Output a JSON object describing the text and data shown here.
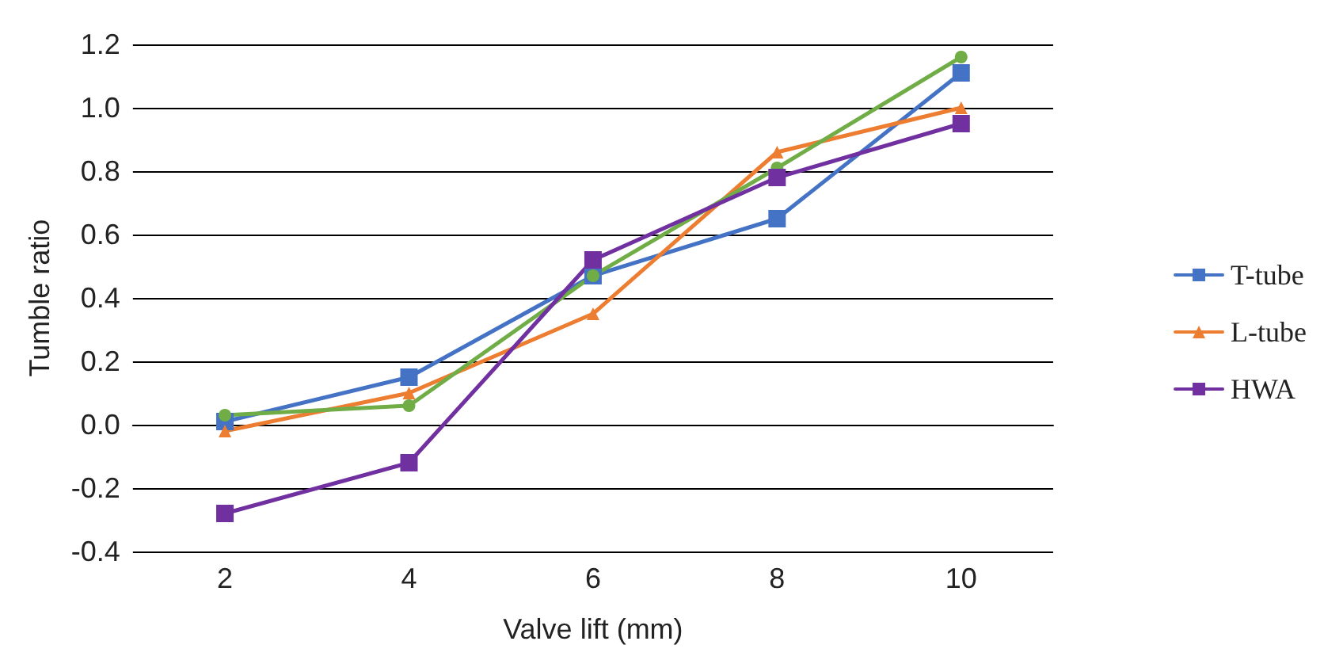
{
  "chart_data": {
    "type": "line",
    "xlabel": "Valve lift (mm)",
    "ylabel": "Tumble ratio",
    "categories": [
      "2",
      "4",
      "6",
      "8",
      "10"
    ],
    "series": [
      {
        "name": "T-tube",
        "color": "#4472c4",
        "marker": "square",
        "values": [
          0.01,
          0.15,
          0.47,
          0.65,
          1.11
        ]
      },
      {
        "name": "L-tube",
        "color": "#ed7d31",
        "marker": "triangle",
        "values": [
          -0.02,
          0.1,
          0.35,
          0.86,
          1.0
        ]
      },
      {
        "color": "#70ad47",
        "marker": "circle",
        "values": [
          0.03,
          0.06,
          0.47,
          0.81,
          1.16
        ]
      },
      {
        "name": "HWA",
        "color": "#7030a0",
        "marker": "square",
        "values": [
          -0.28,
          -0.12,
          0.52,
          0.78,
          0.95
        ]
      }
    ],
    "ylim": [
      -0.4,
      1.2
    ],
    "yticks": [
      -0.4,
      -0.2,
      {
        "value": 0,
        "label": "0.0"
      },
      0.2,
      0.4,
      0.6,
      0.8,
      {
        "value": 1,
        "label": "1.0"
      },
      1.2
    ],
    "grid": "y",
    "legend": "right",
    "line_style": "solid"
  }
}
